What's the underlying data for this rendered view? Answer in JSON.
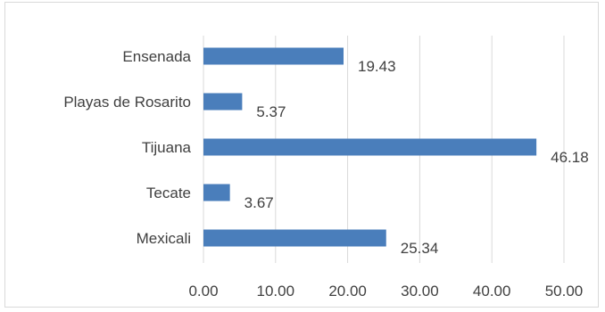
{
  "chart_data": {
    "type": "bar",
    "orientation": "horizontal",
    "categories": [
      "Ensenada",
      "Playas de Rosarito",
      "Tijuana",
      "Tecate",
      "Mexicali"
    ],
    "values": [
      19.43,
      5.37,
      46.18,
      3.67,
      25.34
    ],
    "value_labels": [
      "19.43",
      "5.37",
      "46.18",
      "3.67",
      "25.34"
    ],
    "x_ticks": [
      "0.00",
      "10.00",
      "20.00",
      "30.00",
      "40.00",
      "50.00"
    ],
    "xlim": [
      0,
      50
    ],
    "title": "",
    "xlabel": "",
    "ylabel": "",
    "grid": "vertical",
    "bar_color": "#4a7ebb"
  }
}
